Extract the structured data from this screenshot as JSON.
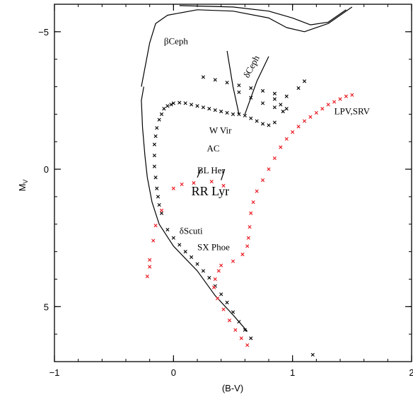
{
  "chart_data": {
    "type": "scatter",
    "xlabel": "(B-V)",
    "ylabel": "M",
    "ylabel_sub": "V",
    "xlim": [
      -1,
      2
    ],
    "ylim": [
      -6,
      7
    ],
    "y_inverted": true,
    "x_ticks": [
      {
        "v": -1,
        "label": "−1"
      },
      {
        "v": 0,
        "label": "0"
      },
      {
        "v": 1,
        "label": "1"
      },
      {
        "v": 2,
        "label": "2"
      }
    ],
    "y_ticks": [
      {
        "v": -5,
        "label": "−5"
      },
      {
        "v": 0,
        "label": "0"
      },
      {
        "v": 5,
        "label": "5"
      }
    ],
    "colors": {
      "black_series": "#000000",
      "red_series": "#e8141c",
      "curves": "#000000"
    },
    "labels": [
      {
        "text": "βCeph",
        "x": -0.08,
        "y": -4.55,
        "color": "#000000",
        "size": "normal"
      },
      {
        "text": "δCeph",
        "x": 0.63,
        "y": -3.3,
        "color": "#000000",
        "size": "normal",
        "rotate": -62
      },
      {
        "text": "W Vir",
        "x": 0.3,
        "y": -1.3,
        "color": "#000000",
        "size": "normal"
      },
      {
        "text": "AC",
        "x": 0.28,
        "y": -0.65,
        "color": "#000000",
        "size": "normal"
      },
      {
        "text": "BL Her",
        "x": 0.2,
        "y": 0.15,
        "color": "#000000",
        "size": "normal"
      },
      {
        "text": "RR Lyr",
        "x": 0.15,
        "y": 0.95,
        "color": "#e8141c",
        "size": "big"
      },
      {
        "text": "δScuti",
        "x": 0.05,
        "y": 2.35,
        "color": "#000000",
        "size": "normal"
      },
      {
        "text": "SX Phoe",
        "x": 0.2,
        "y": 2.95,
        "color": "#000000",
        "size": "normal"
      },
      {
        "text": "LPV,SRV",
        "x": 1.35,
        "y": -2.0,
        "color": "#000000",
        "size": "normal"
      }
    ],
    "series": [
      {
        "color_key": "black_series",
        "style": "x_marks",
        "points": [
          [
            0.0,
            -2.4
          ],
          [
            0.05,
            -2.42
          ],
          [
            0.1,
            -2.4
          ],
          [
            0.15,
            -2.35
          ],
          [
            0.2,
            -2.3
          ],
          [
            0.25,
            -2.25
          ],
          [
            0.3,
            -2.2
          ],
          [
            0.35,
            -2.15
          ],
          [
            0.4,
            -2.1
          ],
          [
            0.45,
            -2.05
          ],
          [
            0.5,
            -2.0
          ],
          [
            0.55,
            -2.0
          ],
          [
            0.6,
            -1.95
          ],
          [
            0.65,
            -1.85
          ],
          [
            0.7,
            -1.75
          ],
          [
            0.75,
            -1.65
          ],
          [
            0.8,
            -1.6
          ],
          [
            0.85,
            -1.7
          ],
          [
            -0.02,
            -2.35
          ],
          [
            -0.05,
            -2.3
          ],
          [
            -0.08,
            -2.2
          ],
          [
            -0.1,
            -2.0
          ],
          [
            -0.12,
            -1.8
          ],
          [
            -0.14,
            -1.5
          ],
          [
            -0.15,
            -1.2
          ],
          [
            -0.16,
            -0.9
          ],
          [
            -0.16,
            -0.5
          ],
          [
            -0.16,
            -0.1
          ],
          [
            -0.15,
            0.3
          ],
          [
            -0.14,
            0.7
          ],
          [
            -0.13,
            1.0
          ],
          [
            -0.12,
            1.3
          ],
          [
            -0.1,
            1.6
          ],
          [
            -0.05,
            2.2
          ],
          [
            0.0,
            2.5
          ],
          [
            0.05,
            2.75
          ],
          [
            0.1,
            3.0
          ],
          [
            0.15,
            3.2
          ],
          [
            0.2,
            3.45
          ],
          [
            0.25,
            3.7
          ],
          [
            0.3,
            3.95
          ],
          [
            0.35,
            4.25
          ],
          [
            0.4,
            4.55
          ],
          [
            0.45,
            4.85
          ],
          [
            0.5,
            5.2
          ],
          [
            0.55,
            5.55
          ],
          [
            0.6,
            5.85
          ],
          [
            0.65,
            6.15
          ],
          [
            1.17,
            6.75
          ],
          [
            0.25,
            -3.35
          ],
          [
            0.35,
            -3.25
          ],
          [
            0.45,
            -3.15
          ],
          [
            0.55,
            -3.05
          ],
          [
            0.65,
            -2.95
          ],
          [
            0.75,
            -2.85
          ],
          [
            0.85,
            -2.75
          ],
          [
            0.95,
            -2.65
          ],
          [
            1.05,
            -2.95
          ],
          [
            1.1,
            -3.2
          ],
          [
            0.55,
            -2.8
          ],
          [
            0.65,
            -2.6
          ],
          [
            0.75,
            -2.4
          ],
          [
            0.85,
            -2.25
          ],
          [
            0.92,
            -2.1
          ],
          [
            0.95,
            -2.2
          ],
          [
            0.9,
            -2.35
          ],
          [
            0.85,
            -2.55
          ]
        ]
      },
      {
        "color_key": "red_series",
        "style": "x_marks",
        "points": [
          [
            -0.22,
            3.9
          ],
          [
            -0.2,
            3.55
          ],
          [
            -0.2,
            3.3
          ],
          [
            -0.17,
            2.6
          ],
          [
            -0.15,
            2.05
          ],
          [
            -0.1,
            1.5
          ],
          [
            0.0,
            0.7
          ],
          [
            0.07,
            0.55
          ],
          [
            0.17,
            0.5
          ],
          [
            0.32,
            0.45
          ],
          [
            0.42,
            0.6
          ],
          [
            0.38,
            3.7
          ],
          [
            0.35,
            4.0
          ],
          [
            0.34,
            4.3
          ],
          [
            0.37,
            4.7
          ],
          [
            0.42,
            5.1
          ],
          [
            0.47,
            5.5
          ],
          [
            0.52,
            5.85
          ],
          [
            0.57,
            6.15
          ],
          [
            0.62,
            6.4
          ],
          [
            0.4,
            3.5
          ],
          [
            0.5,
            3.35
          ],
          [
            0.58,
            3.1
          ],
          [
            0.62,
            2.8
          ],
          [
            0.63,
            2.5
          ],
          [
            0.64,
            2.1
          ],
          [
            0.65,
            1.6
          ],
          [
            0.67,
            1.2
          ],
          [
            0.7,
            0.8
          ],
          [
            0.75,
            0.4
          ],
          [
            0.8,
            0.0
          ],
          [
            0.85,
            -0.4
          ],
          [
            0.9,
            -0.8
          ],
          [
            0.95,
            -1.1
          ],
          [
            1.0,
            -1.35
          ],
          [
            1.05,
            -1.55
          ],
          [
            1.1,
            -1.75
          ],
          [
            1.15,
            -1.9
          ],
          [
            1.2,
            -2.05
          ],
          [
            1.25,
            -2.2
          ],
          [
            1.3,
            -2.35
          ],
          [
            1.35,
            -2.45
          ],
          [
            1.4,
            -2.55
          ],
          [
            1.45,
            -2.65
          ],
          [
            1.5,
            -2.7
          ]
        ]
      }
    ],
    "curves": [
      {
        "name_ref": "upper-evolutionary-track",
        "points": [
          [
            -0.25,
            -3.0
          ],
          [
            -0.27,
            -2.5
          ],
          [
            -0.26,
            -1.5
          ],
          [
            -0.24,
            -0.5
          ],
          [
            -0.22,
            0.3
          ],
          [
            -0.18,
            1.2
          ],
          [
            -0.12,
            2.0
          ],
          [
            0.0,
            2.8
          ],
          [
            0.2,
            3.7
          ],
          [
            0.35,
            4.6
          ],
          [
            0.5,
            5.3
          ],
          [
            0.62,
            5.9
          ]
        ]
      },
      {
        "name_ref": "beta-ceph-track",
        "points": [
          [
            -0.27,
            -3.0
          ],
          [
            -0.2,
            -4.6
          ],
          [
            -0.15,
            -5.3
          ],
          [
            -0.05,
            -5.6
          ],
          [
            0.2,
            -5.8
          ],
          [
            0.5,
            -5.75
          ],
          [
            0.8,
            -5.5
          ],
          [
            0.95,
            -5.15
          ],
          [
            1.1,
            -5.0
          ],
          [
            1.3,
            -5.3
          ],
          [
            1.5,
            -5.9
          ]
        ]
      },
      {
        "name_ref": "beta-ceph-inner",
        "points": [
          [
            0.05,
            -5.95
          ],
          [
            0.5,
            -5.9
          ],
          [
            0.8,
            -5.75
          ],
          [
            1.0,
            -5.5
          ],
          [
            1.15,
            -5.25
          ],
          [
            1.3,
            -5.35
          ],
          [
            1.45,
            -5.8
          ]
        ]
      },
      {
        "name_ref": "instability-strip-blue-edge",
        "points": [
          [
            0.45,
            -4.3
          ],
          [
            0.5,
            -3.0
          ],
          [
            0.55,
            -2.0
          ]
        ]
      },
      {
        "name_ref": "instability-strip-red-edge",
        "points": [
          [
            0.8,
            -4.1
          ],
          [
            0.7,
            -3.2
          ],
          [
            0.6,
            -2.0
          ]
        ]
      },
      {
        "name_ref": "bl-her-pointer",
        "points": [
          [
            0.23,
            0.0
          ],
          [
            0.2,
            0.3
          ]
        ]
      },
      {
        "name_ref": "rr-lyr-pointer",
        "points": [
          [
            0.43,
            0.0
          ],
          [
            0.4,
            0.4
          ]
        ]
      }
    ]
  }
}
